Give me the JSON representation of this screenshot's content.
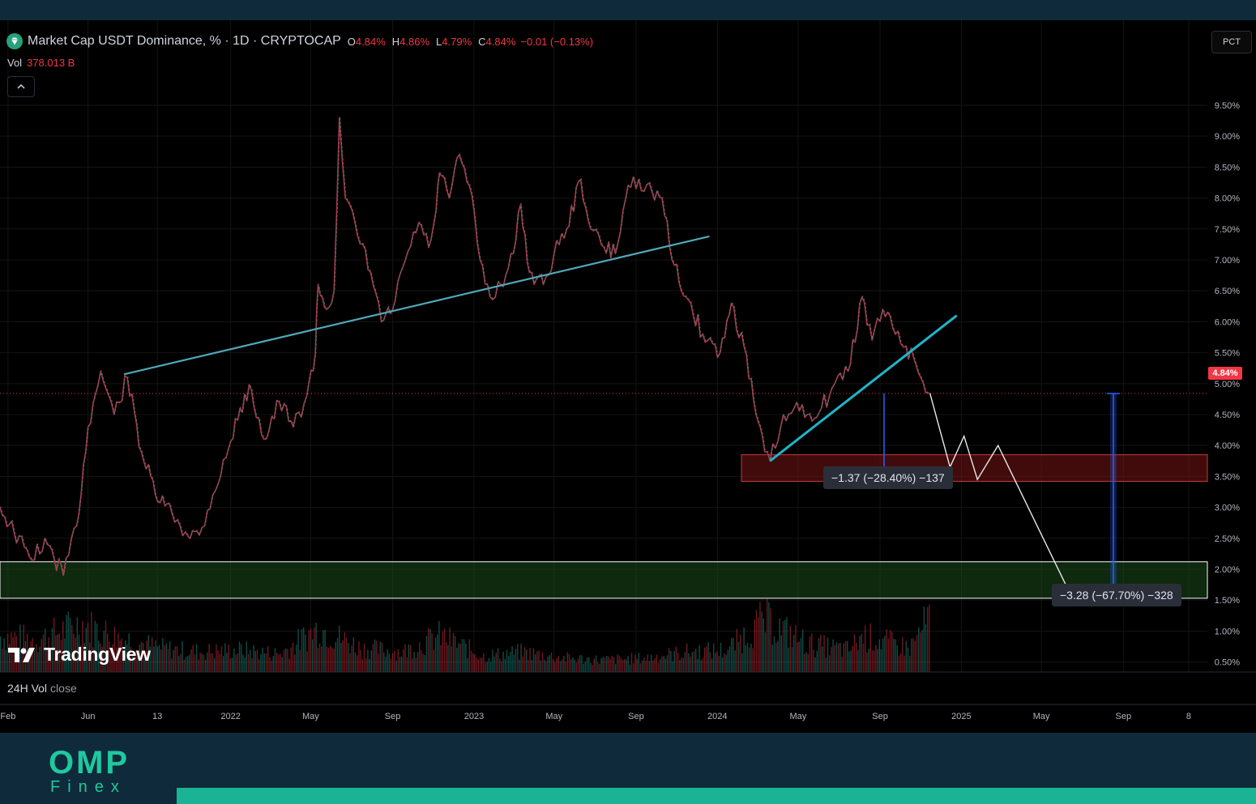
{
  "legend": {
    "symbol": "Market Cap USDT Dominance, % · 1D · CRYPTOCAP",
    "open_label": "O",
    "open_value": "4.84%",
    "high_label": "H",
    "high_value": "4.86%",
    "low_label": "L",
    "low_value": "4.79%",
    "close_label": "C",
    "close_value": "4.84%",
    "change": "−0.01 (−0.13%)",
    "vol_label": "Vol",
    "vol_value": "378.013 B",
    "up_color": "#26a69a",
    "down_color": "#f23645"
  },
  "scale_button": "PCT",
  "current_price_label": "4.84%",
  "measurements": [
    {
      "text": "−1.37 (−28.40%) −137",
      "from": 4.84,
      "to": 3.47
    },
    {
      "text": "−3.28 (−67.70%) −328",
      "from": 4.84,
      "to": 1.56
    }
  ],
  "zones": [
    {
      "name": "support-zone-red",
      "y_low": 3.42,
      "y_high": 3.85,
      "color": "#f23645"
    },
    {
      "name": "target-zone-green",
      "y_low": 1.53,
      "y_high": 2.12,
      "color": "#1e5a1e"
    }
  ],
  "watermark": "TradingView",
  "volume_indicator": {
    "label": "24H Vol",
    "suffix": "close"
  },
  "brand": {
    "top": "OMP",
    "bottom": "Finex"
  },
  "chart_data": {
    "type": "line",
    "title": "Market Cap USDT Dominance, % · 1D · CRYPTOCAP",
    "xlabel": "",
    "ylabel": "",
    "y_scale": "percent",
    "ylim": [
      0.0,
      10.0
    ],
    "y_ticks": [
      "9.50%",
      "9.00%",
      "8.50%",
      "8.00%",
      "7.50%",
      "7.00%",
      "6.50%",
      "6.00%",
      "5.50%",
      "5.00%",
      "4.50%",
      "4.00%",
      "3.50%",
      "3.00%",
      "2.50%",
      "2.00%",
      "1.50%",
      "1.00%",
      "0.50%"
    ],
    "y_tick_values": [
      9.5,
      9.0,
      8.5,
      8.0,
      7.5,
      7.0,
      6.5,
      6.0,
      5.5,
      5.0,
      4.5,
      4.0,
      3.5,
      3.0,
      2.5,
      2.0,
      1.5,
      1.0,
      0.5
    ],
    "x_ticks": [
      "Feb",
      "Jun",
      "13",
      "2022",
      "May",
      "Sep",
      "2023",
      "May",
      "Sep",
      "2024",
      "May",
      "Sep",
      "2025",
      "May",
      "Sep",
      "8"
    ],
    "x_tick_dates": [
      "2021-02-01",
      "2021-06-01",
      "2021-09-13",
      "2022-01-01",
      "2022-05-01",
      "2022-09-01",
      "2023-01-01",
      "2023-05-01",
      "2023-09-01",
      "2024-01-01",
      "2024-05-01",
      "2024-09-01",
      "2025-01-01",
      "2025-05-01",
      "2025-09-01",
      "2025-12-08"
    ],
    "x_range": [
      "2021-01-20",
      "2026-01-05"
    ],
    "grid": true,
    "legend": "top-left",
    "series": [
      {
        "name": "Market Cap USDT Dominance",
        "points": [
          [
            "2021-01-20",
            3.0
          ],
          [
            "2021-02-10",
            2.6
          ],
          [
            "2021-03-05",
            2.2
          ],
          [
            "2021-04-01",
            2.4
          ],
          [
            "2021-04-25",
            1.9
          ],
          [
            "2021-05-15",
            2.7
          ],
          [
            "2021-06-01",
            4.3
          ],
          [
            "2021-06-20",
            5.2
          ],
          [
            "2021-07-10",
            4.5
          ],
          [
            "2021-07-30",
            5.1
          ],
          [
            "2021-08-20",
            3.9
          ],
          [
            "2021-09-10",
            3.2
          ],
          [
            "2021-10-05",
            2.9
          ],
          [
            "2021-10-25",
            2.6
          ],
          [
            "2021-11-15",
            2.55
          ],
          [
            "2021-12-05",
            3.2
          ],
          [
            "2021-12-25",
            3.8
          ],
          [
            "2022-01-15",
            4.6
          ],
          [
            "2022-02-01",
            4.9
          ],
          [
            "2022-02-20",
            4.1
          ],
          [
            "2022-03-15",
            4.7
          ],
          [
            "2022-04-05",
            4.3
          ],
          [
            "2022-04-25",
            4.8
          ],
          [
            "2022-05-08",
            5.5
          ],
          [
            "2022-05-12",
            6.6
          ],
          [
            "2022-05-25",
            6.2
          ],
          [
            "2022-06-05",
            6.5
          ],
          [
            "2022-06-13",
            9.3
          ],
          [
            "2022-06-22",
            8.0
          ],
          [
            "2022-07-10",
            7.4
          ],
          [
            "2022-07-30",
            6.8
          ],
          [
            "2022-08-15",
            6.0
          ],
          [
            "2022-09-01",
            6.2
          ],
          [
            "2022-09-20",
            7.0
          ],
          [
            "2022-10-10",
            7.6
          ],
          [
            "2022-10-25",
            7.2
          ],
          [
            "2022-11-05",
            7.8
          ],
          [
            "2022-11-10",
            8.4
          ],
          [
            "2022-11-25",
            8.0
          ],
          [
            "2022-12-10",
            8.7
          ],
          [
            "2022-12-25",
            8.2
          ],
          [
            "2023-01-10",
            7.0
          ],
          [
            "2023-01-25",
            6.4
          ],
          [
            "2023-02-10",
            6.6
          ],
          [
            "2023-03-01",
            7.1
          ],
          [
            "2023-03-12",
            7.9
          ],
          [
            "2023-03-25",
            6.8
          ],
          [
            "2023-04-15",
            6.6
          ],
          [
            "2023-05-01",
            7.1
          ],
          [
            "2023-05-20",
            7.5
          ],
          [
            "2023-06-10",
            8.3
          ],
          [
            "2023-06-25",
            7.5
          ],
          [
            "2023-07-15",
            7.2
          ],
          [
            "2023-08-01",
            7.1
          ],
          [
            "2023-08-20",
            8.2
          ],
          [
            "2023-09-05",
            8.3
          ],
          [
            "2023-09-25",
            8.1
          ],
          [
            "2023-10-10",
            8.0
          ],
          [
            "2023-10-25",
            7.0
          ],
          [
            "2023-11-15",
            6.4
          ],
          [
            "2023-12-10",
            5.8
          ],
          [
            "2024-01-05",
            5.5
          ],
          [
            "2024-01-22",
            6.3
          ],
          [
            "2024-02-10",
            5.6
          ],
          [
            "2024-02-28",
            4.5
          ],
          [
            "2024-03-12",
            3.9
          ],
          [
            "2024-03-20",
            3.75
          ],
          [
            "2024-04-05",
            4.3
          ],
          [
            "2024-04-25",
            4.6
          ],
          [
            "2024-05-15",
            4.5
          ],
          [
            "2024-06-05",
            4.6
          ],
          [
            "2024-06-25",
            5.0
          ],
          [
            "2024-07-15",
            5.2
          ],
          [
            "2024-08-05",
            6.4
          ],
          [
            "2024-08-20",
            5.7
          ],
          [
            "2024-09-05",
            6.2
          ],
          [
            "2024-09-20",
            5.9
          ],
          [
            "2024-10-10",
            5.6
          ],
          [
            "2024-10-25",
            5.3
          ],
          [
            "2024-11-05",
            5.0
          ],
          [
            "2024-11-15",
            4.84
          ]
        ]
      },
      {
        "name": "24H Vol",
        "points": [
          [
            "2021-01-20",
            0.9
          ],
          [
            "2021-03-15",
            0.8
          ],
          [
            "2021-05-20",
            1.2
          ],
          [
            "2021-07-10",
            0.9
          ],
          [
            "2021-09-15",
            0.6
          ],
          [
            "2021-11-15",
            0.5
          ],
          [
            "2022-01-15",
            0.55
          ],
          [
            "2022-03-15",
            0.45
          ],
          [
            "2022-05-12",
            1.1
          ],
          [
            "2022-07-15",
            0.6
          ],
          [
            "2022-09-15",
            0.5
          ],
          [
            "2022-11-10",
            0.9
          ],
          [
            "2023-01-15",
            0.4
          ],
          [
            "2023-03-15",
            0.5
          ],
          [
            "2023-05-15",
            0.35
          ],
          [
            "2023-07-15",
            0.3
          ],
          [
            "2023-09-15",
            0.35
          ],
          [
            "2023-11-15",
            0.5
          ],
          [
            "2024-01-15",
            0.55
          ],
          [
            "2024-03-10",
            1.3
          ],
          [
            "2024-05-15",
            0.7
          ],
          [
            "2024-07-15",
            0.55
          ],
          [
            "2024-08-05",
            0.9
          ],
          [
            "2024-10-15",
            0.6
          ],
          [
            "2024-11-15",
            1.4
          ]
        ]
      }
    ],
    "trendlines": [
      {
        "name": "upper-trendline",
        "from": [
          "2021-07-25",
          5.15
        ],
        "to": [
          "2023-12-20",
          7.38
        ],
        "color": "#4fa8b8"
      },
      {
        "name": "rising-trendline",
        "from": [
          "2024-03-20",
          3.75
        ],
        "to": [
          "2024-12-25",
          6.1
        ],
        "color": "#1fb5c9"
      }
    ],
    "projection": [
      [
        "2024-11-15",
        4.84
      ],
      [
        "2024-12-15",
        3.65
      ],
      [
        "2025-01-05",
        4.15
      ],
      [
        "2025-01-25",
        3.45
      ],
      [
        "2025-02-25",
        4.0
      ],
      [
        "2025-06-15",
        1.56
      ]
    ],
    "current_price": 4.84
  }
}
